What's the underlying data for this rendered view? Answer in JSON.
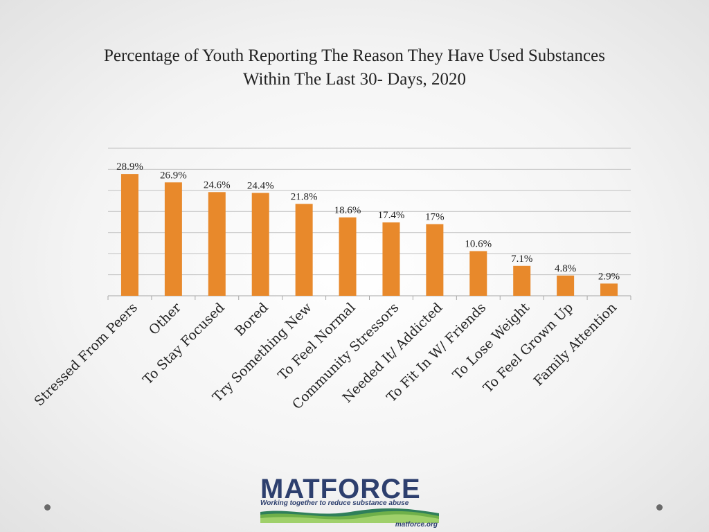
{
  "slide": {
    "title_line1": "Percentage of Youth Reporting The Reason They Have Used Substances",
    "title_line2": "Within The Last 30- Days, 2020"
  },
  "colors": {
    "bar": "#E8892B",
    "grid": "#bfbfbf",
    "text": "#222222"
  },
  "chart_data": {
    "type": "bar",
    "title": "Percentage of Youth Reporting The Reason They Have Used Substances Within The Last 30- Days, 2020",
    "categories": [
      "Stressed From Peers",
      "Other",
      "To Stay Focused",
      "Bored",
      "Try Something New",
      "To Feel Normal",
      "Community Stressors",
      "Needed It/ Addicted",
      "To Fit In W/ Friends",
      "To Lose Weight",
      "To Feel Grown Up",
      "Family Attention"
    ],
    "values": [
      28.9,
      26.9,
      24.6,
      24.4,
      21.8,
      18.6,
      17.4,
      17,
      10.6,
      7.1,
      4.8,
      2.9
    ],
    "data_labels": [
      "28.9%",
      "26.9%",
      "24.6%",
      "24.4%",
      "21.8%",
      "18.6%",
      "17.4%",
      "17%",
      "10.6%",
      "7.1%",
      "4.8%",
      "2.9%"
    ],
    "xlabel": "",
    "ylabel": "",
    "ylim": [
      0,
      35
    ],
    "grid": true,
    "legend": "none"
  },
  "logo": {
    "name": "MATFORCE",
    "tagline": "Working together to reduce substance abuse",
    "url": "matforce.org"
  }
}
